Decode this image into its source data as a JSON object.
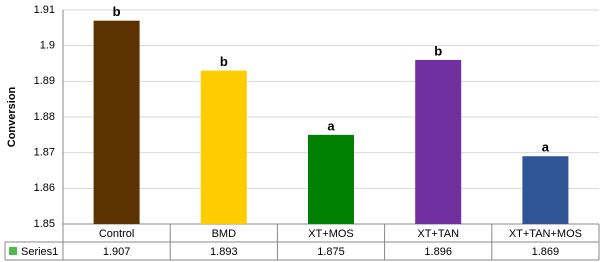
{
  "chart_data": {
    "type": "bar",
    "y_label": "Conversion",
    "categories": [
      "Control",
      "BMD",
      "XT+MOS",
      "XT+TAN",
      "XT+TAN+MOS"
    ],
    "series": [
      {
        "name": "Series1",
        "color": "#4db84d",
        "values": [
          1.907,
          1.893,
          1.875,
          1.896,
          1.869
        ],
        "colors": [
          "#5c3300",
          "#ffcc00",
          "#008000",
          "#7030a0",
          "#2f5597"
        ],
        "annotations": [
          "b",
          "b",
          "a",
          "b",
          "a"
        ]
      }
    ],
    "ylim": [
      1.85,
      1.91
    ],
    "yticks": [
      1.85,
      1.86,
      1.87,
      1.88,
      1.89,
      1.9,
      1.91
    ],
    "grid": true
  }
}
